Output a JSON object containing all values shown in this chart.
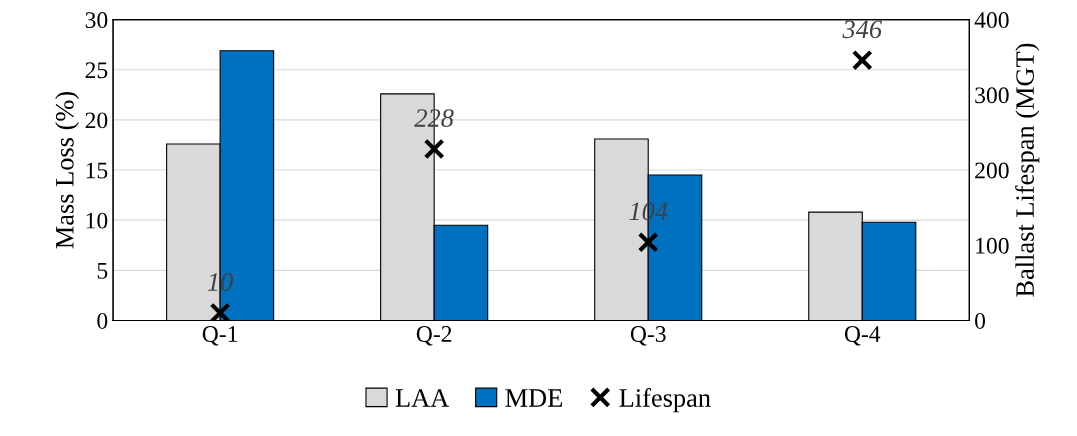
{
  "chart_data": {
    "type": "bar",
    "ylabel": "Mass Loss (%)",
    "y2label": "Ballast Lifespan (MGT)",
    "categories": [
      "Q-1",
      "Q-2",
      "Q-3",
      "Q-4"
    ],
    "series": [
      {
        "name": "LAA",
        "color": "#d9d9d9",
        "values": [
          17.6,
          22.6,
          18.1,
          10.8
        ]
      },
      {
        "name": "MDE",
        "color": "#0070c0",
        "values": [
          26.9,
          9.5,
          14.5,
          9.8
        ]
      },
      {
        "name": "Lifespan",
        "type": "scatter",
        "axis": "y2",
        "color": "#000000",
        "marker": "cross",
        "values": [
          10,
          228,
          104,
          346
        ],
        "value_labels": [
          "10",
          "228",
          "104",
          "346"
        ]
      }
    ],
    "ylim": [
      0,
      30
    ],
    "yticks": [
      0,
      5,
      10,
      15,
      20,
      25,
      30
    ],
    "y2lim": [
      0,
      400
    ],
    "y2ticks": [
      0,
      100,
      200,
      300,
      400
    ],
    "grid": "y",
    "legend": "bottom"
  }
}
